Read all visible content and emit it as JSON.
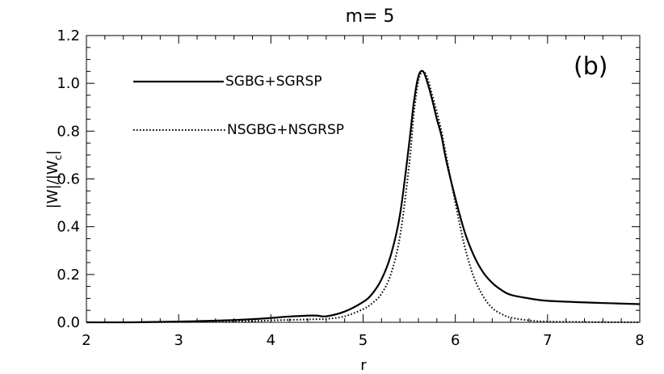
{
  "chart_data": {
    "type": "line",
    "title": "m=  5",
    "xlabel": "r",
    "ylabel_main": "|W|/|W",
    "ylabel_sub": "c",
    "ylabel_end": "|",
    "panel_label": "(b)",
    "xlim": [
      2,
      8
    ],
    "ylim": [
      0,
      1.2
    ],
    "x_ticks": [
      2,
      3,
      4,
      5,
      6,
      7,
      8
    ],
    "x_tick_labels": [
      "2",
      "3",
      "4",
      "5",
      "6",
      "7",
      "8"
    ],
    "y_ticks": [
      0,
      0.2,
      0.4,
      0.6,
      0.8,
      1.0,
      1.2
    ],
    "y_tick_labels": [
      "0.0",
      "0.2",
      "0.4",
      "0.6",
      "0.8",
      "1.0",
      "1.2"
    ],
    "grid": false,
    "legend_position": "top-left",
    "series": [
      {
        "name": "SGBG+SGRSP",
        "style": "solid",
        "x": [
          2.0,
          2.5,
          3.0,
          3.5,
          3.8,
          4.0,
          4.2,
          4.4,
          4.5,
          4.6,
          4.8,
          5.0,
          5.1,
          5.2,
          5.3,
          5.4,
          5.5,
          5.55,
          5.6,
          5.65,
          5.7,
          5.75,
          5.8,
          5.85,
          5.9,
          6.0,
          6.1,
          6.2,
          6.3,
          6.4,
          6.5,
          6.6,
          6.8,
          7.0,
          7.5,
          8.0
        ],
        "y": [
          0.0,
          0.0,
          0.003,
          0.008,
          0.013,
          0.018,
          0.024,
          0.028,
          0.028,
          0.025,
          0.045,
          0.085,
          0.12,
          0.18,
          0.28,
          0.45,
          0.75,
          0.92,
          1.03,
          1.05,
          1.0,
          0.93,
          0.85,
          0.78,
          0.68,
          0.52,
          0.38,
          0.28,
          0.21,
          0.165,
          0.135,
          0.115,
          0.1,
          0.09,
          0.082,
          0.076
        ]
      },
      {
        "name": "NSGBG+NSGRSP",
        "style": "dotted",
        "x": [
          2.0,
          2.5,
          3.0,
          3.5,
          3.8,
          4.0,
          4.2,
          4.4,
          4.5,
          4.6,
          4.8,
          5.0,
          5.1,
          5.2,
          5.3,
          5.4,
          5.5,
          5.55,
          5.6,
          5.65,
          5.7,
          5.75,
          5.8,
          5.85,
          5.9,
          6.0,
          6.1,
          6.2,
          6.3,
          6.4,
          6.5,
          6.6,
          6.8,
          7.0,
          7.5,
          8.0
        ],
        "y": [
          0.0,
          0.0,
          0.001,
          0.003,
          0.005,
          0.008,
          0.01,
          0.012,
          0.013,
          0.014,
          0.025,
          0.055,
          0.08,
          0.12,
          0.2,
          0.36,
          0.66,
          0.87,
          1.01,
          1.05,
          1.02,
          0.95,
          0.88,
          0.8,
          0.7,
          0.5,
          0.32,
          0.19,
          0.11,
          0.06,
          0.035,
          0.02,
          0.008,
          0.003,
          0.001,
          0.0
        ]
      }
    ]
  }
}
